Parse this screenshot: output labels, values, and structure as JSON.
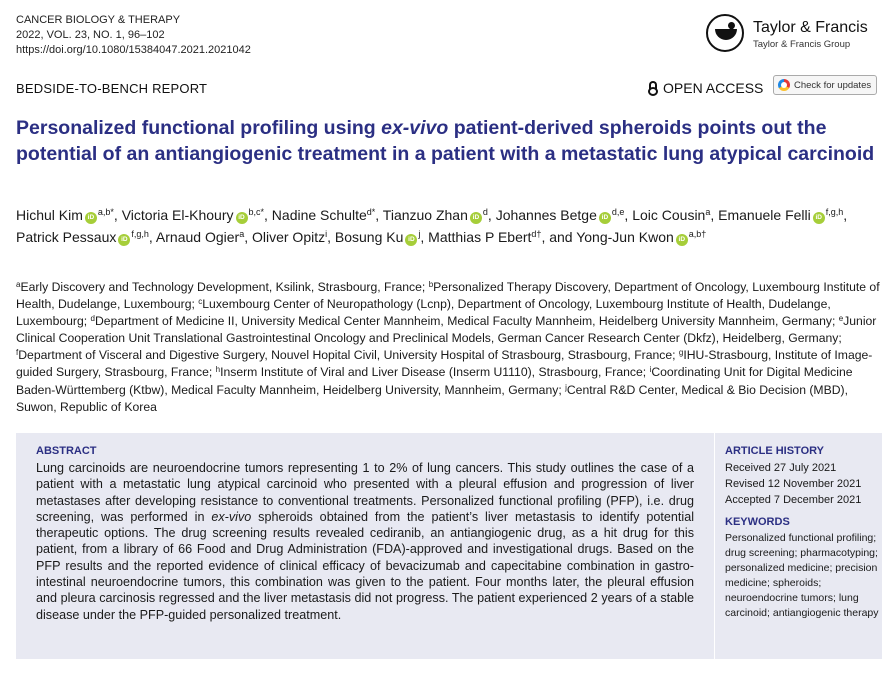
{
  "journal": {
    "name": "CANCER BIOLOGY & THERAPY",
    "volume_line": "2022, VOL. 23, NO. 1, 96–102",
    "doi": "https://doi.org/10.1080/15384047.2021.2021042"
  },
  "publisher": {
    "name": "Taylor & Francis",
    "group": "Taylor & Francis Group"
  },
  "report_type": "BEDSIDE-TO-BENCH REPORT",
  "open_access": "OPEN ACCESS",
  "check_updates": "Check for updates",
  "title": {
    "part1": "Personalized functional profiling using ",
    "italic": "ex-vivo",
    "part2": " patient-derived spheroids points out the potential of an antiangiogenic treatment in a patient with a metastatic lung atypical carcinoid"
  },
  "authors": [
    {
      "name": "Hichul Kim",
      "orcid": true,
      "sup": "a,b*"
    },
    {
      "name": "Victoria El-Khoury",
      "orcid": true,
      "sup": "b,c*"
    },
    {
      "name": "Nadine Schulte",
      "orcid": false,
      "sup": "d*"
    },
    {
      "name": "Tianzuo Zhan",
      "orcid": true,
      "sup": "d"
    },
    {
      "name": "Johannes Betge",
      "orcid": true,
      "sup": "d,e"
    },
    {
      "name": "Loic Cousin",
      "orcid": false,
      "sup": "a"
    },
    {
      "name": "Emanuele Felli",
      "orcid": true,
      "sup": "f,g,h"
    },
    {
      "name": "Patrick Pessaux",
      "orcid": true,
      "sup": "f,g,h"
    },
    {
      "name": "Arnaud Ogier",
      "orcid": false,
      "sup": "a"
    },
    {
      "name": "Oliver Opitz",
      "orcid": false,
      "sup": "i"
    },
    {
      "name": "Bosung Ku",
      "orcid": true,
      "sup": "j"
    },
    {
      "name": "Matthias P Ebert",
      "orcid": false,
      "sup": "d†"
    },
    {
      "name": "Yong-Jun Kwon",
      "orcid": true,
      "sup": "a,b†"
    }
  ],
  "authors_conjunction": "and",
  "affiliations": [
    {
      "sup": "a",
      "text": "Early Discovery and Technology Development, Ksilink, Strasbourg, France; "
    },
    {
      "sup": "b",
      "text": "Personalized Therapy Discovery, Department of Oncology, Luxembourg Institute of Health, Dudelange, Luxembourg; "
    },
    {
      "sup": "c",
      "text": "Luxembourg Center of Neuropathology (Lcnp), Department of Oncology, Luxembourg Institute of Health, Dudelange, Luxembourg; "
    },
    {
      "sup": "d",
      "text": "Department of Medicine II, University Medical Center Mannheim, Medical Faculty Mannheim, Heidelberg University Mannheim, Germany; "
    },
    {
      "sup": "e",
      "text": "Junior Clinical Cooperation Unit Translational Gastrointestinal Oncology and Preclinical Models, German Cancer Research Center (Dkfz), Heidelberg, Germany; "
    },
    {
      "sup": "f",
      "text": "Department of Visceral and Digestive Surgery, Nouvel Hopital Civil, University Hospital of Strasbourg, Strasbourg, France; "
    },
    {
      "sup": "g",
      "text": "IHU-Strasbourg, Institute of Image-guided Surgery, Strasbourg, France; "
    },
    {
      "sup": "h",
      "text": "Inserm Institute of Viral and Liver Disease (Inserm U1110), Strasbourg, France; "
    },
    {
      "sup": "i",
      "text": "Coordinating Unit for Digital Medicine Baden-Württemberg (Ktbw), Medical Faculty Mannheim, Heidelberg University, Mannheim, Germany; "
    },
    {
      "sup": "j",
      "text": "Central R&D Center, Medical & Bio Decision (MBD), Suwon, Republic of Korea"
    }
  ],
  "abstract": {
    "heading": "ABSTRACT",
    "text1": "Lung carcinoids are neuroendocrine tumors representing 1 to 2% of lung cancers. This study outlines the case of a patient with a metastatic lung atypical carcinoid who presented with a pleural effusion and progression of liver metastases after developing resistance to conventional treatments. Personalized functional profiling (PFP), i.e. drug screening, was performed in ",
    "italic": "ex-vivo",
    "text2": " spheroids obtained from the patient’s liver metastasis to identify potential therapeutic options. The drug screening results revealed cediranib, an antiangiogenic drug, as a hit drug for this patient, from a library of 66 Food and Drug Administration (FDA)-approved and investigational drugs. Based on the PFP results and the reported evidence of clinical efficacy of bevacizumab and capecitabine combination in gastro-intestinal neuroendocrine tumors, this combination was given to the patient. Four months later, the pleural effusion and pleura carcinosis regressed and the liver metastasis did not progress. The patient experienced 2 years of a stable disease under the PFP-guided personalized treatment."
  },
  "article_history": {
    "heading": "ARTICLE HISTORY",
    "received": "Received 27 July 2021",
    "revised": "Revised 12 November 2021",
    "accepted": "Accepted 7 December 2021"
  },
  "keywords": {
    "heading": "KEYWORDS",
    "text": "Personalized functional profiling; drug screening; pharmacotyping; personalized medicine; precision medicine; spheroids; neuroendocrine tumors; lung carcinoid; antiangiogenic therapy"
  }
}
